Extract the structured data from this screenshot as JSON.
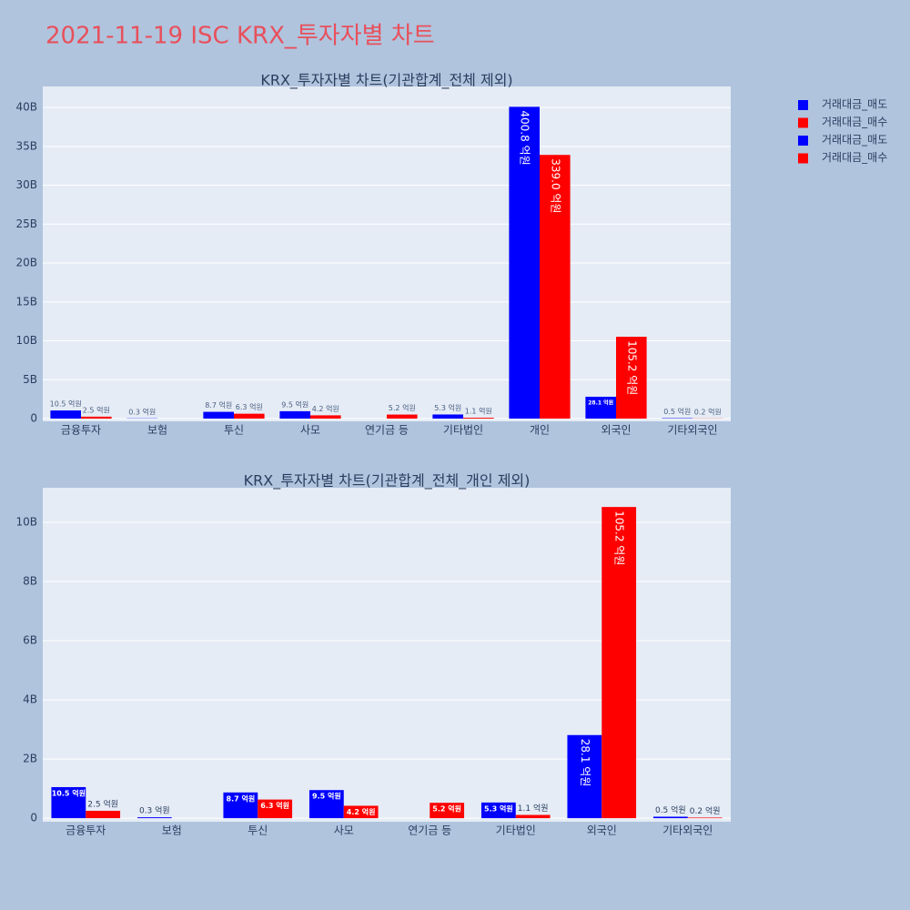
{
  "title": "2021-11-19 ISC KRX_투자자별 차트",
  "chart_data": [
    {
      "type": "bar",
      "title": "KRX_투자자별 차트(기관합계_전체 제외)",
      "categories": [
        "금융투자",
        "보험",
        "투신",
        "사모",
        "연기금 등",
        "기타법인",
        "개인",
        "외국인",
        "기타외국인"
      ],
      "series": [
        {
          "name": "거래대금_매도",
          "color": "#0000ff",
          "values": [
            1050000000,
            30000000,
            870000000,
            950000000,
            null,
            530000000,
            40080000000,
            2810000000,
            50000000
          ],
          "value_labels": [
            "10.5 억원",
            "0.3 억원",
            "8.7 억원",
            "9.5 억원",
            null,
            "5.3 억원",
            "400.8 억원",
            "28.1 억원",
            "0.5 억원"
          ]
        },
        {
          "name": "거래대금_매수",
          "color": "#ff0000",
          "values": [
            250000000,
            null,
            630000000,
            420000000,
            520000000,
            110000000,
            33900000000,
            10520000000,
            20000000
          ],
          "value_labels": [
            "2.5 억원",
            null,
            "6.3 억원",
            "4.2 억원",
            "5.2 억원",
            "1.1 억원",
            "339.0 억원",
            "105.2 억원",
            "0.2 억원"
          ]
        }
      ],
      "ylim": [
        -350000000,
        42700000000
      ],
      "yticks": [
        0,
        {
          "value": 5000000000,
          "label": "5B"
        },
        {
          "value": 10000000000,
          "label": "10B"
        },
        {
          "value": 15000000000,
          "label": "15B"
        },
        {
          "value": 20000000000,
          "label": "20B"
        },
        {
          "value": 25000000000,
          "label": "25B"
        },
        {
          "value": 30000000000,
          "label": "30B"
        },
        {
          "value": 35000000000,
          "label": "35B"
        },
        {
          "value": 40000000000,
          "label": "40B"
        }
      ],
      "grid": true,
      "legend": "top-right"
    },
    {
      "type": "bar",
      "title": "KRX_투자자별 차트(기관합계_전체_개인 제외)",
      "categories": [
        "금융투자",
        "보험",
        "투신",
        "사모",
        "연기금 등",
        "기타법인",
        "외국인",
        "기타외국인"
      ],
      "series": [
        {
          "name": "거래대금_매도",
          "color": "#0000ff",
          "values": [
            1050000000,
            30000000,
            870000000,
            950000000,
            null,
            530000000,
            2810000000,
            50000000
          ],
          "value_labels": [
            "10.5 억원",
            "0.3 억원",
            "8.7 억원",
            "9.5 억원",
            null,
            "5.3 억원",
            "28.1 억원",
            "0.5 억원"
          ]
        },
        {
          "name": "거래대금_매수",
          "color": "#ff0000",
          "values": [
            250000000,
            null,
            630000000,
            420000000,
            520000000,
            110000000,
            10520000000,
            20000000
          ],
          "value_labels": [
            "2.5 억원",
            null,
            "6.3 억원",
            "4.2 억원",
            "5.2 억원",
            "1.1 억원",
            "105.2 억원",
            "0.2 억원"
          ]
        }
      ],
      "ylim": [
        -120000000,
        11170000000
      ],
      "yticks": [
        0,
        {
          "value": 2000000000,
          "label": "2B"
        },
        {
          "value": 4000000000,
          "label": "4B"
        },
        {
          "value": 6000000000,
          "label": "6B"
        },
        {
          "value": 8000000000,
          "label": "8B"
        },
        {
          "value": 10000000000,
          "label": "10B"
        }
      ],
      "grid": true,
      "legend": "top-right"
    }
  ]
}
